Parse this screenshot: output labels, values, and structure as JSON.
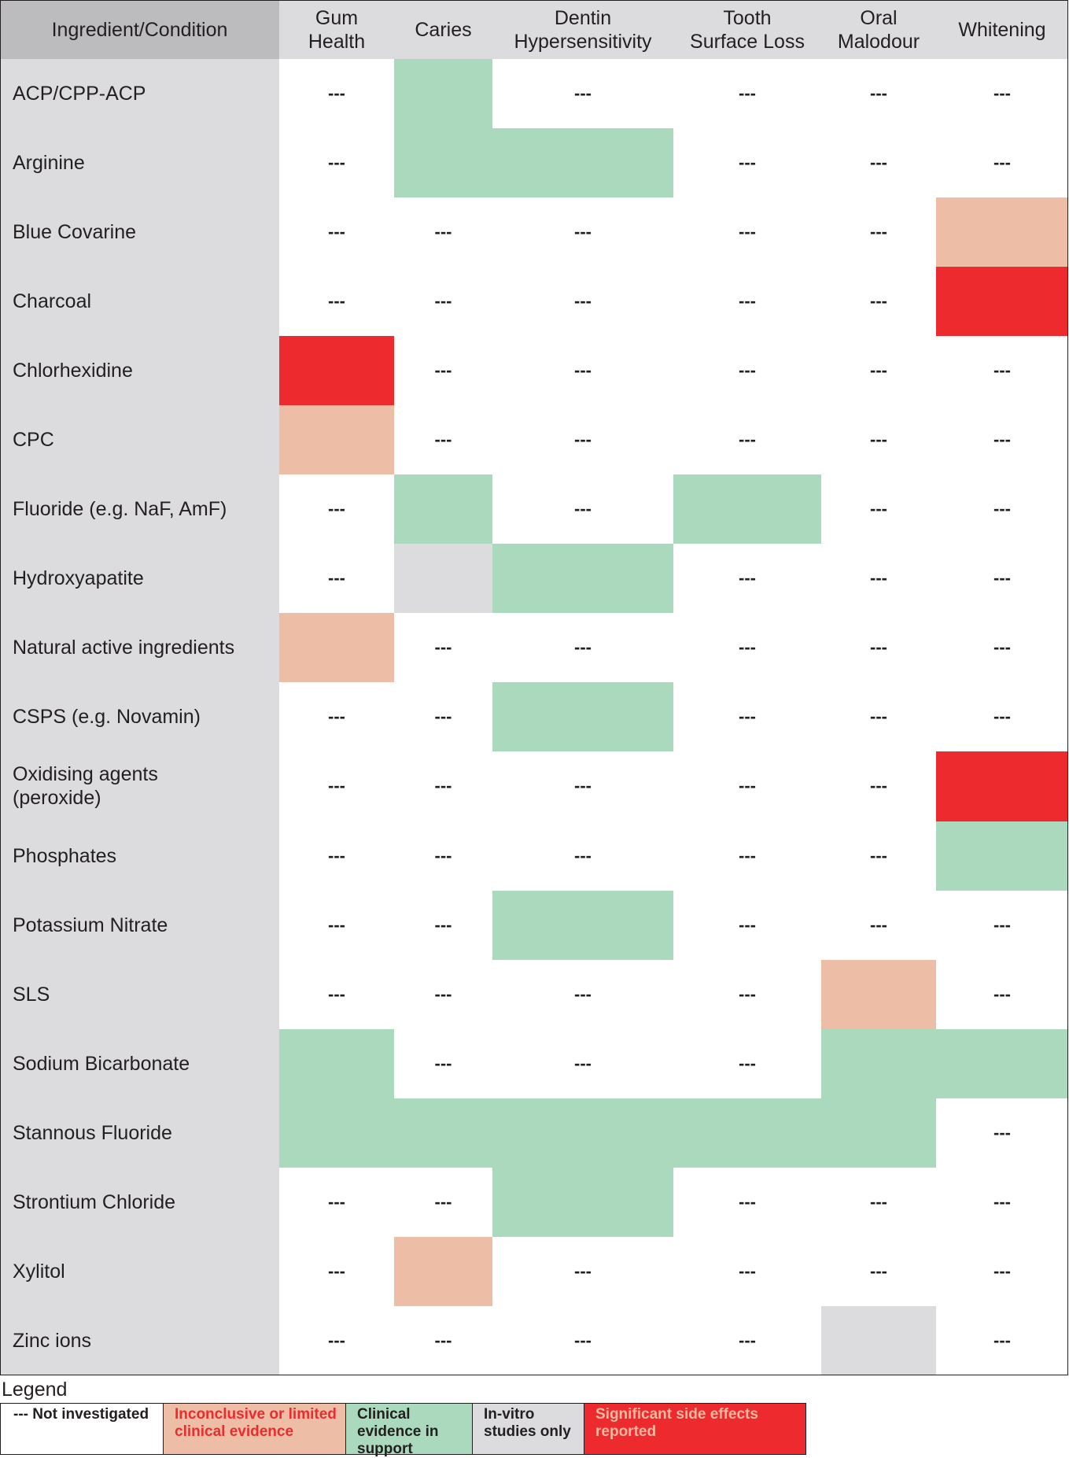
{
  "chart_data": {
    "type": "table",
    "corner_header": "Ingredient/Condition",
    "columns": [
      [
        "Gum",
        "Health"
      ],
      [
        "Caries"
      ],
      [
        "Dentin",
        "Hypersensitivity"
      ],
      [
        "Tooth",
        "Surface Loss"
      ],
      [
        "Oral",
        "Malodour"
      ],
      [
        "Whitening"
      ]
    ],
    "rows": [
      {
        "label": [
          "ACP/CPP-ACP"
        ],
        "values": [
          "ni",
          "clinical",
          "ni",
          "ni",
          "ni",
          "ni"
        ]
      },
      {
        "label": [
          "Arginine"
        ],
        "values": [
          "ni",
          "clinical",
          "clinical",
          "ni",
          "ni",
          "ni"
        ]
      },
      {
        "label": [
          "Blue Covarine"
        ],
        "values": [
          "ni",
          "ni",
          "ni",
          "ni",
          "ni",
          "inconclusive"
        ]
      },
      {
        "label": [
          "Charcoal"
        ],
        "values": [
          "ni",
          "ni",
          "ni",
          "ni",
          "ni",
          "side_effects"
        ]
      },
      {
        "label": [
          "Chlorhexidine"
        ],
        "values": [
          "side_effects",
          "ni",
          "ni",
          "ni",
          "ni",
          "ni"
        ]
      },
      {
        "label": [
          "CPC"
        ],
        "values": [
          "inconclusive",
          "ni",
          "ni",
          "ni",
          "ni",
          "ni"
        ]
      },
      {
        "label": [
          "Fluoride (e.g. NaF, AmF)"
        ],
        "values": [
          "ni",
          "clinical",
          "ni",
          "clinical",
          "ni",
          "ni"
        ]
      },
      {
        "label": [
          "Hydroxyapatite"
        ],
        "values": [
          "ni",
          "invitro",
          "clinical",
          "ni",
          "ni",
          "ni"
        ]
      },
      {
        "label": [
          "Natural active ingredients"
        ],
        "values": [
          "inconclusive",
          "ni",
          "ni",
          "ni",
          "ni",
          "ni"
        ]
      },
      {
        "label": [
          "CSPS (e.g. Novamin)"
        ],
        "values": [
          "ni",
          "ni",
          "clinical",
          "ni",
          "ni",
          "ni"
        ]
      },
      {
        "label": [
          "Oxidising agents",
          "(peroxide)"
        ],
        "values": [
          "ni",
          "ni",
          "ni",
          "ni",
          "ni",
          "side_effects"
        ]
      },
      {
        "label": [
          "Phosphates"
        ],
        "values": [
          "ni",
          "ni",
          "ni",
          "ni",
          "ni",
          "clinical"
        ]
      },
      {
        "label": [
          "Potassium Nitrate"
        ],
        "values": [
          "ni",
          "ni",
          "clinical",
          "ni",
          "ni",
          "ni"
        ]
      },
      {
        "label": [
          "SLS"
        ],
        "values": [
          "ni",
          "ni",
          "ni",
          "ni",
          "inconclusive",
          "ni"
        ]
      },
      {
        "label": [
          "Sodium Bicarbonate"
        ],
        "values": [
          "clinical",
          "ni",
          "ni",
          "ni",
          "clinical",
          "clinical"
        ]
      },
      {
        "label": [
          "Stannous Fluoride"
        ],
        "values": [
          "clinical",
          "clinical",
          "clinical",
          "clinical",
          "clinical",
          "ni"
        ]
      },
      {
        "label": [
          "Strontium Chloride"
        ],
        "values": [
          "ni",
          "ni",
          "clinical",
          "ni",
          "ni",
          "ni"
        ]
      },
      {
        "label": [
          "Xylitol"
        ],
        "values": [
          "ni",
          "inconclusive",
          "ni",
          "ni",
          "ni",
          "ni"
        ]
      },
      {
        "label": [
          "Zinc ions"
        ],
        "values": [
          "ni",
          "ni",
          "ni",
          "ni",
          "invitro",
          "ni"
        ]
      }
    ],
    "legend_title": "Legend",
    "legend": [
      {
        "key": "ni",
        "label": "--- Not investigated",
        "color": "#ffffff",
        "text_color": "#231f20"
      },
      {
        "key": "inconclusive",
        "label": "Inconclusive or limited clinical evidence",
        "color": "#edbea5",
        "text_color": "#ed2b2f"
      },
      {
        "key": "clinical",
        "label": "Clinical evidence in support",
        "color": "#abd9bd",
        "text_color": "#231f20"
      },
      {
        "key": "invitro",
        "label": "In-vitro studies only",
        "color": "#dcdcde",
        "text_color": "#231f20"
      },
      {
        "key": "side_effects",
        "label": "Significant side effects reported",
        "color": "#ed2b2f",
        "text_color": "#f2b9a1"
      }
    ],
    "not_investigated_mark": "---"
  }
}
